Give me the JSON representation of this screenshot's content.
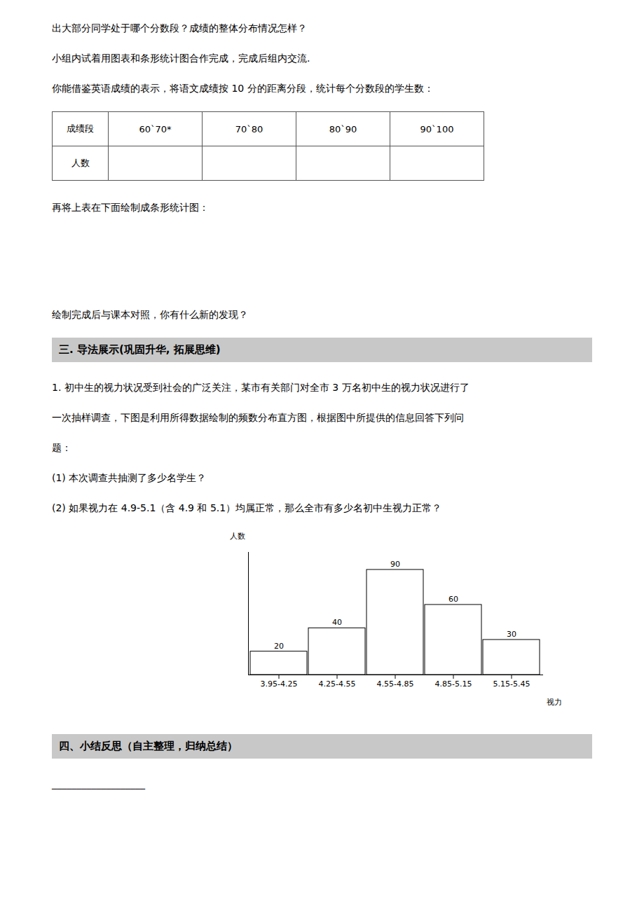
{
  "chart_data": {
    "type": "bar",
    "categories": [
      "3.95-4.25",
      "4.25-4.55",
      "4.55-4.85",
      "4.85-5.15",
      "5.15-5.45"
    ],
    "values": [
      20,
      40,
      90,
      60,
      30
    ],
    "color": "#ffffff",
    "ylim": [
      0,
      105
    ],
    "x_label": "视力",
    "y_label": "人数",
    "data_labels": true,
    "tick_labels": "x",
    "table_header": [
      "成绩段",
      "60`70*",
      "70`80",
      "80`90",
      "90`100"
    ],
    "table_row_label": "人数",
    "annotations": [
      "出大部分同学处于哪个分数段？成绩的整体分布情况怎样？",
      "小组内试着用图表和条形统计图合作完成，完成后组内交流.",
      "你能借鉴英语成绩的表示，将语文成绩按 10 分的距离分段，统计每个分数段的学生数：",
      "再将上表在下面绘制成条形统计图：",
      "绘制完成后与课本对照，你有什么新的发现？",
      "三. 导法展示(巩固升华, 拓展思维)",
      "1. 初中生的视力状况受到社会的广泛关注，某市有关部门对全市 3 万名初中生的视力状况进行了",
      "一次抽样调查，下图是利用所得数据绘制的频数分布直方图，根据图中所提供的信息回答下列问",
      "题：",
      "(1) 本次调查共抽测了多少名学生？",
      "(2) 如果视力在 4.9-5.1（含 4.9 和 5.1）均属正常，那么全市有多少名初中生视力正常？",
      "四、小结反思（自主整理，归纳总结）",
      "___________________"
    ]
  }
}
